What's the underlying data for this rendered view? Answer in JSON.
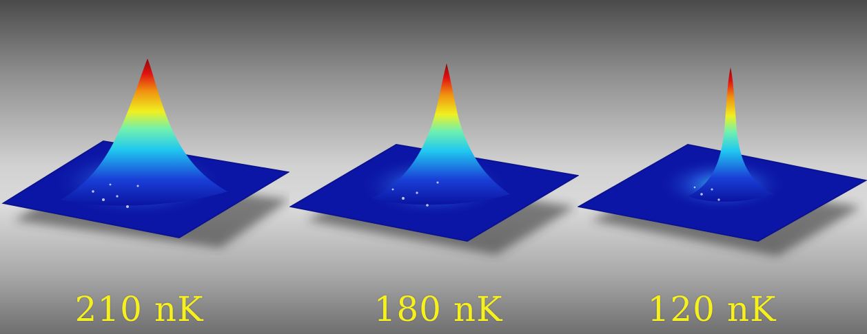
{
  "panels": [
    {
      "temperature_label": "210 nK",
      "peak": "broad"
    },
    {
      "temperature_label": "180 nK",
      "peak": "medium"
    },
    {
      "temperature_label": "120 nK",
      "peak": "narrow"
    }
  ],
  "colors": {
    "background_light": "#dadada",
    "background_dark": "#4a4a4a",
    "label_text": "#f5f01e",
    "colormap": [
      "#0a14a0",
      "#1a50e0",
      "#20c8f0",
      "#70f0b0",
      "#f0f020",
      "#f09010",
      "#e01010",
      "#8a0a0a"
    ]
  }
}
